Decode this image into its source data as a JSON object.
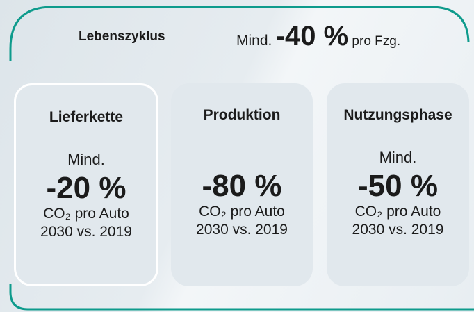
{
  "header": {
    "title": "Lebenszyklus",
    "prefix": "Mind.",
    "value": "-40 %",
    "suffix": "pro Fzg."
  },
  "cards": [
    {
      "title": "Lieferkette",
      "prefix": "Mind.",
      "value": "-20 %",
      "metric": "CO₂ pro Auto",
      "period": "2030 vs. 2019"
    },
    {
      "title": "Produktion",
      "value": "-80 %",
      "metric": "CO₂ pro Auto",
      "period": "2030 vs. 2019"
    },
    {
      "title": "Nutzungsphase",
      "prefix": "Mind.",
      "value": "-50 %",
      "metric": "CO₂ pro Auto",
      "period": "2030 vs. 2019"
    }
  ]
}
